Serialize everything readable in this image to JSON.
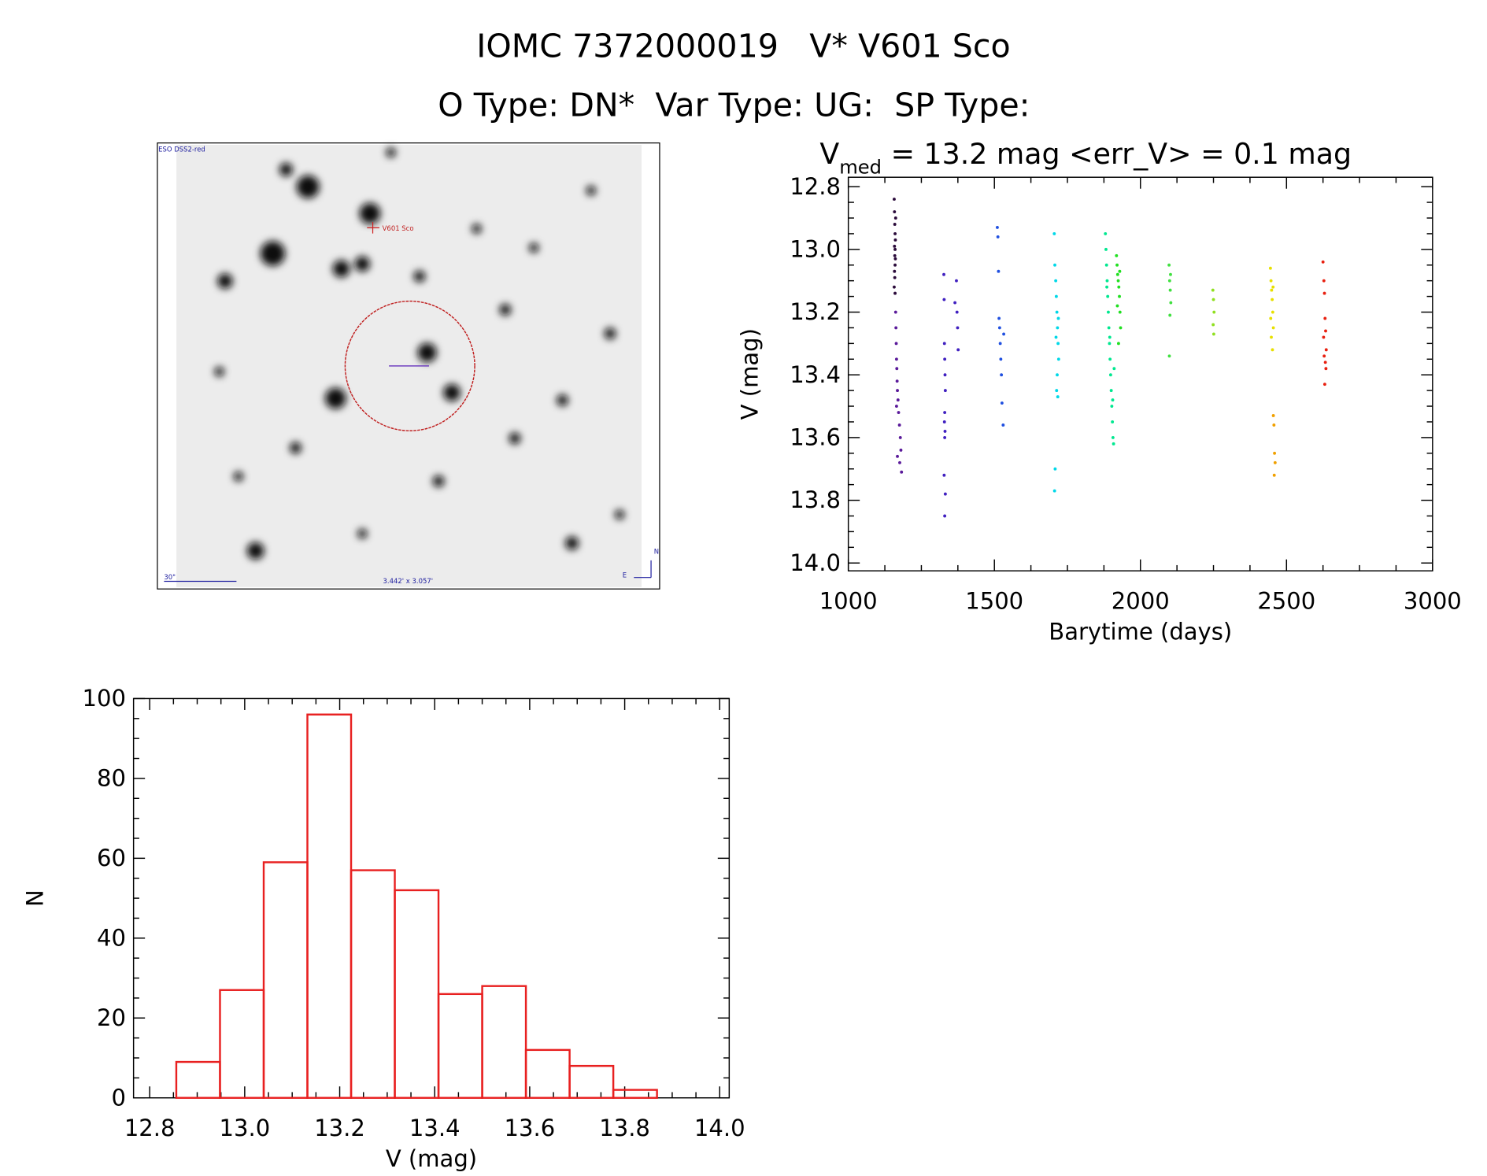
{
  "header": {
    "title": "IOMC 7372000019   V* V601 Sco",
    "subtitle": "O Type: DN*  Var Type: UG:  SP Type:"
  },
  "image": {
    "survey": "ESO DSS2-red",
    "target": "V601 Sco",
    "scale_bar": "30\"",
    "size": "3.442' x 3.057'",
    "north": "N",
    "east": "E"
  },
  "chart_data": [
    {
      "type": "scatter",
      "title_parts": [
        "V",
        "med",
        " = 13.2 mag <err_V> = 0.1 mag"
      ],
      "x_label": "Barytime (days)",
      "y_label": "V (mag)",
      "xlim": [
        1000,
        3000
      ],
      "xticks": [
        1000,
        1500,
        2000,
        2500,
        3000
      ],
      "ylim": [
        14.025,
        12.77
      ],
      "yticks": [
        12.8,
        {
          "value": 13,
          "label": "13.0"
        },
        13.2,
        13.4,
        13.6,
        13.8,
        {
          "value": 14,
          "label": "14.0"
        }
      ],
      "series": [
        {
          "color": "#2a0a3a",
          "x": [
            1157,
            1158,
            1159,
            1160,
            1161,
            1158,
            1160,
            1159,
            1161,
            1160,
            1158,
            1159,
            1157,
            1160,
            1162
          ],
          "values": [
            12.84,
            12.88,
            12.92,
            12.95,
            12.97,
            12.99,
            13.0,
            13.02,
            13.03,
            13.05,
            13.07,
            13.09,
            13.12,
            13.14,
            12.9
          ]
        },
        {
          "color": "#5a1a9a",
          "x": [
            1162,
            1163,
            1164,
            1165,
            1166,
            1167,
            1168,
            1170,
            1165,
            1172,
            1175,
            1178,
            1180,
            1168,
            1176,
            1182
          ],
          "values": [
            13.2,
            13.25,
            13.3,
            13.35,
            13.38,
            13.42,
            13.45,
            13.48,
            13.5,
            13.52,
            13.56,
            13.6,
            13.64,
            13.66,
            13.68,
            13.71
          ]
        },
        {
          "color": "#4020c0",
          "x": [
            1327,
            1328,
            1329,
            1330,
            1331,
            1332,
            1330,
            1329,
            1331,
            1330,
            1328,
            1332,
            1330,
            1365,
            1370,
            1372,
            1374,
            1376
          ],
          "values": [
            13.08,
            13.16,
            13.3,
            13.35,
            13.4,
            13.45,
            13.52,
            13.55,
            13.58,
            13.6,
            13.72,
            13.78,
            13.85,
            13.17,
            13.1,
            13.2,
            13.25,
            13.32
          ]
        },
        {
          "color": "#2050e0",
          "x": [
            1510,
            1512,
            1514,
            1516,
            1518,
            1520,
            1522,
            1524,
            1526,
            1530,
            1532
          ],
          "values": [
            12.93,
            12.96,
            13.07,
            13.22,
            13.25,
            13.3,
            13.35,
            13.4,
            13.49,
            13.56,
            13.27
          ]
        },
        {
          "color": "#00d8e8",
          "x": [
            1705,
            1707,
            1710,
            1712,
            1714,
            1716,
            1718,
            1720,
            1715,
            1713,
            1717,
            1719,
            1711,
            1708,
            1706
          ],
          "values": [
            12.95,
            13.05,
            13.1,
            13.15,
            13.2,
            13.25,
            13.3,
            13.35,
            13.4,
            13.45,
            13.47,
            13.22,
            13.28,
            13.7,
            13.77
          ]
        },
        {
          "color": "#00e890",
          "x": [
            1880,
            1882,
            1884,
            1886,
            1888,
            1890,
            1892,
            1894,
            1896,
            1898,
            1900,
            1902,
            1904,
            1906,
            1908,
            1910,
            1885,
            1895,
            1905
          ],
          "values": [
            12.95,
            13.0,
            13.05,
            13.1,
            13.15,
            13.2,
            13.25,
            13.3,
            13.35,
            13.4,
            13.45,
            13.5,
            13.55,
            13.6,
            13.62,
            13.38,
            13.12,
            13.28,
            13.48
          ]
        },
        {
          "color": "#20e020",
          "x": [
            1918,
            1920,
            1922,
            1924,
            1926,
            1928,
            1930,
            1932,
            1925,
            1921,
            1929
          ],
          "values": [
            13.02,
            13.05,
            13.08,
            13.1,
            13.12,
            13.15,
            13.2,
            13.25,
            13.3,
            13.18,
            13.07
          ]
        },
        {
          "color": "#40e040",
          "x": [
            2098,
            2100,
            2102,
            2104,
            2101,
            2099,
            2103
          ],
          "values": [
            13.05,
            13.1,
            13.13,
            13.17,
            13.21,
            13.34,
            13.08
          ]
        },
        {
          "color": "#90e020",
          "x": [
            2248,
            2250,
            2252,
            2249,
            2251
          ],
          "values": [
            13.13,
            13.16,
            13.2,
            13.24,
            13.27
          ]
        },
        {
          "color": "#e8e000",
          "x": [
            2445,
            2447,
            2449,
            2451,
            2453,
            2455,
            2448,
            2452,
            2454,
            2446
          ],
          "values": [
            13.06,
            13.1,
            13.13,
            13.16,
            13.2,
            13.25,
            13.28,
            13.32,
            13.12,
            13.22
          ]
        },
        {
          "color": "#f0a000",
          "x": [
            2455,
            2457,
            2459,
            2461,
            2458
          ],
          "values": [
            13.53,
            13.56,
            13.65,
            13.68,
            13.72
          ]
        },
        {
          "color": "#e82010",
          "x": [
            2625,
            2628,
            2630,
            2632,
            2634,
            2636,
            2629,
            2633,
            2627,
            2635,
            2631
          ],
          "values": [
            13.04,
            13.1,
            13.14,
            13.22,
            13.26,
            13.32,
            13.34,
            13.36,
            13.28,
            13.38,
            13.43
          ]
        }
      ]
    },
    {
      "type": "histogram",
      "x_label": "V (mag)",
      "y_label": "N",
      "color": "#e82020",
      "bins": [
        12.856,
        12.948,
        13.04,
        13.132,
        13.224,
        13.316,
        13.408,
        13.5,
        13.592,
        13.684,
        13.776,
        13.868
      ],
      "values": [
        9,
        27,
        59,
        96,
        57,
        52,
        26,
        28,
        12,
        8,
        2
      ],
      "xlim": [
        12.766,
        14.02
      ],
      "xticks": [
        12.8,
        {
          "value": 13,
          "label": "13.0"
        },
        13.2,
        13.4,
        13.6,
        13.8,
        {
          "value": 14,
          "label": "14.0"
        }
      ],
      "ylim": [
        0,
        100
      ],
      "yticks": [
        0,
        20,
        40,
        60,
        80,
        100
      ]
    }
  ]
}
